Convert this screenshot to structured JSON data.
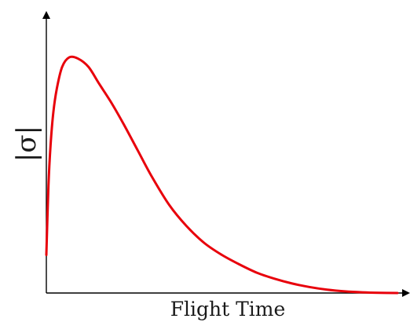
{
  "chart_data": {
    "type": "line",
    "title": "",
    "xlabel": "Flight Time",
    "ylabel": "|σ|",
    "grid": false,
    "legend": "none",
    "axes_ticks": "none",
    "x_range": [
      0,
      10
    ],
    "y_range": [
      0,
      1
    ],
    "series": [
      {
        "color": "#e8000b",
        "x": [
          0.0,
          0.06,
          0.12,
          0.2,
          0.3,
          0.45,
          0.65,
          0.9,
          1.2,
          1.5,
          1.85,
          2.2,
          2.6,
          3.0,
          3.5,
          4.0,
          4.5,
          5.0,
          5.5,
          6.0,
          6.5,
          7.0,
          7.5,
          8.0,
          8.5,
          9.0,
          9.5,
          10.0
        ],
        "y": [
          0.16,
          0.45,
          0.62,
          0.76,
          0.86,
          0.95,
          0.99,
          0.985,
          0.95,
          0.88,
          0.8,
          0.71,
          0.6,
          0.49,
          0.37,
          0.28,
          0.21,
          0.16,
          0.12,
          0.085,
          0.06,
          0.04,
          0.025,
          0.014,
          0.007,
          0.003,
          0.001,
          0.0
        ]
      }
    ]
  }
}
